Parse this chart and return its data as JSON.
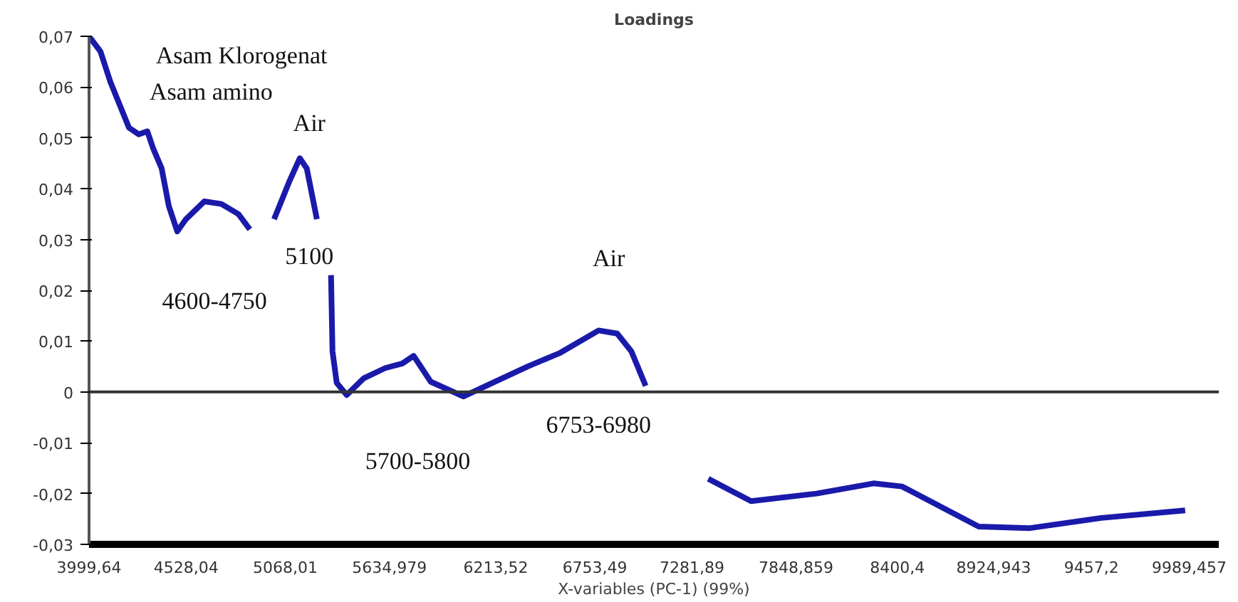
{
  "chart_data": {
    "type": "line",
    "title": "Loadings",
    "xlabel": "X-variables (PC-1) (99%)",
    "x": [
      3999.64,
      4062,
      4116,
      4217,
      4271,
      4317,
      4348,
      4395,
      4434,
      4480,
      4527,
      4627,
      4720,
      4813,
      4875,
      4900,
      5007,
      5092,
      5147,
      5185,
      5240,
      5260,
      5317,
      5325,
      5348,
      5402,
      5495,
      5612,
      5705,
      5767,
      5860,
      6038,
      6208,
      6387,
      6565,
      6774,
      6875,
      6952,
      7030,
      7200,
      7371,
      7604,
      7960,
      8270,
      8425,
      8843,
      9122,
      9510,
      9967
    ],
    "series": [
      {
        "color": "#1a1aaa",
        "values": [
          0.07,
          0.067,
          0.061,
          0.052,
          0.0507,
          0.0513,
          0.048,
          0.044,
          0.0366,
          0.0316,
          0.034,
          0.0375,
          0.037,
          0.035,
          0.032,
          null,
          0.034,
          0.0416,
          0.046,
          0.044,
          0.034,
          null,
          0.023,
          0.008,
          0.0018,
          -0.0006,
          0.0027,
          0.0047,
          0.0056,
          0.0071,
          0.002,
          -0.0009,
          0.002,
          0.005,
          0.0077,
          0.0121,
          0.0115,
          0.008,
          0.0012,
          null,
          -0.0171,
          -0.0215,
          -0.02,
          -0.018,
          -0.0186,
          -0.0265,
          -0.0268,
          -0.0248,
          -0.0233
        ]
      }
    ],
    "xlim": [
      3999.64,
      10150
    ],
    "ylim": [
      -0.03,
      0.07
    ],
    "xticks": [
      {
        "value": 3999.64,
        "label": "3999,64"
      },
      {
        "value": 4528.04,
        "label": "4528,04"
      },
      {
        "value": 5068.01,
        "label": "5068,01"
      },
      {
        "value": 5634.979,
        "label": "5634,979"
      },
      {
        "value": 6213.52,
        "label": "6213,52"
      },
      {
        "value": 6753.49,
        "label": "6753,49"
      },
      {
        "value": 7281.89,
        "label": "7281,89"
      },
      {
        "value": 7848.859,
        "label": "7848,859"
      },
      {
        "value": 8400.4,
        "label": "8400,4"
      },
      {
        "value": 8924.943,
        "label": "8924,943"
      },
      {
        "value": 9457.2,
        "label": "9457,2"
      },
      {
        "value": 9989.457,
        "label": "9989,457"
      }
    ],
    "yticks": [
      {
        "value": -0.03,
        "label": "-0,03"
      },
      {
        "value": -0.02,
        "label": "-0,02"
      },
      {
        "value": -0.01,
        "label": "-0,01"
      },
      0,
      {
        "value": 0.01,
        "label": "0,01"
      },
      {
        "value": 0.02,
        "label": "0,02"
      },
      {
        "value": 0.03,
        "label": "0,03"
      },
      {
        "value": 0.04,
        "label": "0,04"
      },
      {
        "value": 0.05,
        "label": "0,05"
      },
      {
        "value": 0.06,
        "label": "0,06"
      },
      {
        "value": 0.07,
        "label": "0,07"
      }
    ],
    "ref_lines": [
      {
        "axis": "y",
        "value": 0,
        "label": null,
        "color": "#333333"
      }
    ],
    "annotations": [
      "Asam Klorogenat",
      "Asam amino",
      "Air",
      "5100",
      "4600-4750",
      "Air",
      "5700-5800",
      "6753-6980"
    ],
    "grid": false,
    "marker": "none",
    "line_style": "solid"
  }
}
